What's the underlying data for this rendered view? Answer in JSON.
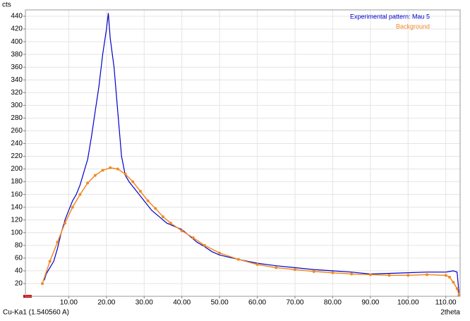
{
  "chart_data": {
    "type": "line",
    "y_label": "cts",
    "x_label": "2theta",
    "annotation": "Cu-Ka1 (1.540560 A)",
    "xlim": [
      -1.5,
      113.8
    ],
    "ylim": [
      0,
      450
    ],
    "xticks": [
      {
        "value": 10,
        "label": "10.00"
      },
      {
        "value": 20,
        "label": "20.00"
      },
      {
        "value": 30,
        "label": "30.00"
      },
      {
        "value": 40,
        "label": "40.00"
      },
      {
        "value": 50,
        "label": "50.00"
      },
      {
        "value": 60,
        "label": "60.00"
      },
      {
        "value": 70,
        "label": "70.00"
      },
      {
        "value": 80,
        "label": "80.00"
      },
      {
        "value": 90,
        "label": "90.00"
      },
      {
        "value": 100,
        "label": "100.00"
      },
      {
        "value": 110,
        "label": "110.00"
      }
    ],
    "yticks": [
      20,
      40,
      60,
      80,
      100,
      120,
      140,
      160,
      180,
      200,
      220,
      240,
      260,
      280,
      300,
      320,
      340,
      360,
      380,
      400,
      420,
      440
    ],
    "grid": true,
    "legend": "top-right",
    "series": [
      {
        "name": "Experimental pattern: Mau 5",
        "color": "#0000cc",
        "markers": false,
        "x": [
          3.5,
          4,
          5,
          6,
          7,
          8,
          9,
          10,
          11,
          12,
          13,
          14,
          15,
          16,
          17,
          18,
          19,
          20,
          20.5,
          21,
          22,
          23,
          24,
          25,
          26,
          28,
          30,
          32,
          34,
          36,
          38,
          40,
          42,
          44,
          46,
          48,
          50,
          55,
          60,
          65,
          70,
          75,
          80,
          85,
          90,
          95,
          100,
          105,
          110,
          112,
          113,
          113.5
        ],
        "values": [
          25,
          35,
          45,
          55,
          75,
          100,
          120,
          135,
          150,
          160,
          175,
          195,
          215,
          250,
          290,
          330,
          380,
          420,
          445,
          405,
          360,
          290,
          220,
          190,
          180,
          165,
          150,
          135,
          125,
          115,
          110,
          105,
          95,
          85,
          78,
          70,
          65,
          58,
          52,
          48,
          45,
          42,
          40,
          38,
          35,
          36,
          37,
          38,
          38,
          40,
          38,
          5
        ]
      },
      {
        "name": "Background",
        "color": "#f08a24",
        "markers": true,
        "x": [
          3,
          5,
          7,
          9,
          11,
          13,
          15,
          17,
          19,
          21,
          23,
          25,
          27,
          29,
          31,
          33,
          35,
          37,
          40,
          43,
          46,
          50,
          55,
          60,
          65,
          70,
          75,
          80,
          85,
          90,
          95,
          100,
          105,
          110,
          111,
          112,
          113,
          113.5
        ],
        "values": [
          20,
          55,
          85,
          115,
          140,
          160,
          178,
          190,
          198,
          202,
          200,
          192,
          180,
          165,
          150,
          138,
          125,
          115,
          103,
          92,
          80,
          68,
          58,
          50,
          45,
          42,
          39,
          37,
          35,
          34,
          33,
          33,
          34,
          33,
          30,
          22,
          12,
          2
        ]
      }
    ]
  }
}
